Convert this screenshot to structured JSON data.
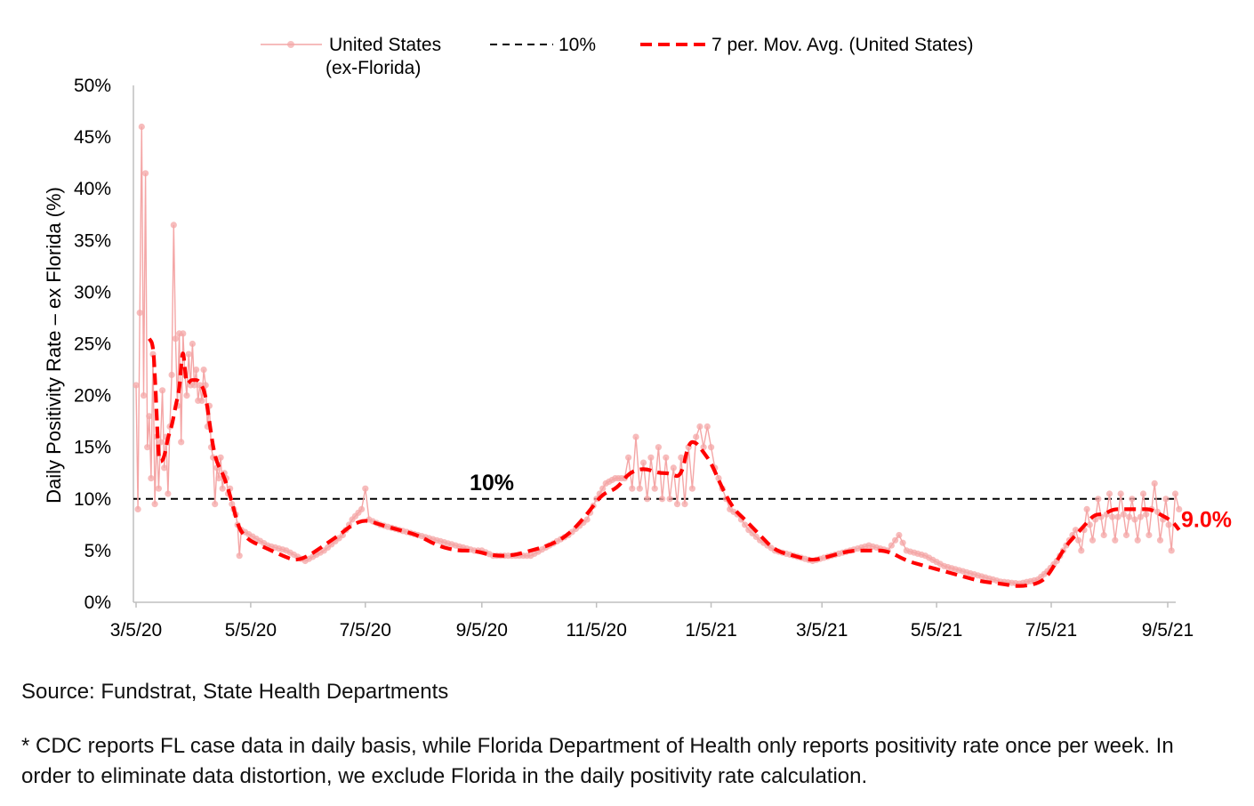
{
  "chart_data": {
    "type": "line",
    "title": "",
    "xlabel": "",
    "ylabel": "Daily Positivity Rate – ex Florida (%)",
    "ylim": [
      0,
      50
    ],
    "x_start_date": "2020-03-05",
    "x_end_date": "2021-09-11",
    "y_ticks": [
      "0%",
      "5%",
      "10%",
      "15%",
      "20%",
      "25%",
      "30%",
      "35%",
      "40%",
      "45%",
      "50%"
    ],
    "x_ticks": [
      {
        "label": "3/5/20",
        "day": 0
      },
      {
        "label": "5/5/20",
        "day": 61
      },
      {
        "label": "7/5/20",
        "day": 122
      },
      {
        "label": "9/5/20",
        "day": 184
      },
      {
        "label": "11/5/20",
        "day": 245
      },
      {
        "label": "1/5/21",
        "day": 306
      },
      {
        "label": "3/5/21",
        "day": 365
      },
      {
        "label": "5/5/21",
        "day": 426
      },
      {
        "label": "7/5/21",
        "day": 487
      },
      {
        "label": "9/5/21",
        "day": 549
      }
    ],
    "legend": [
      {
        "name": "United States",
        "name2": "(ex-Florida)",
        "color": "#f4a6a6",
        "style": "line-marker"
      },
      {
        "name": "10%",
        "color": "#000000",
        "style": "dashed"
      },
      {
        "name": "7 per. Mov. Avg. (United States)",
        "color": "#ff0000",
        "style": "bold-dashed"
      }
    ],
    "reference_line": {
      "value": 10,
      "label": "10%",
      "color": "#000000"
    },
    "end_label": {
      "text": "9.0%",
      "color": "#ff0000"
    },
    "series": [
      {
        "name": "United States (ex-Florida)",
        "color": "#f4a6a6",
        "anchors": [
          [
            0,
            21
          ],
          [
            1,
            9
          ],
          [
            2,
            28
          ],
          [
            3,
            46
          ],
          [
            4,
            20
          ],
          [
            5,
            41.5
          ],
          [
            6,
            15
          ],
          [
            7,
            18
          ],
          [
            8,
            12
          ],
          [
            9,
            24
          ],
          [
            10,
            9.5
          ],
          [
            11,
            16
          ],
          [
            12,
            11
          ],
          [
            13,
            15.5
          ],
          [
            14,
            20.5
          ],
          [
            15,
            13
          ],
          [
            16,
            16
          ],
          [
            17,
            10.5
          ],
          [
            18,
            17
          ],
          [
            19,
            22
          ],
          [
            20,
            36.5
          ],
          [
            21,
            25.5
          ],
          [
            22,
            19
          ],
          [
            23,
            26
          ],
          [
            24,
            15.5
          ],
          [
            25,
            26
          ],
          [
            26,
            22
          ],
          [
            27,
            20
          ],
          [
            28,
            24
          ],
          [
            29,
            21
          ],
          [
            30,
            25
          ],
          [
            31,
            21
          ],
          [
            32,
            22.5
          ],
          [
            33,
            19.5
          ],
          [
            34,
            21
          ],
          [
            35,
            19.5
          ],
          [
            36,
            22.5
          ],
          [
            37,
            21
          ],
          [
            38,
            17
          ],
          [
            39,
            19
          ],
          [
            40,
            15
          ],
          [
            41,
            14
          ],
          [
            42,
            9.5
          ],
          [
            43,
            13
          ],
          [
            44,
            12
          ],
          [
            45,
            14
          ],
          [
            46,
            11
          ],
          [
            47,
            12.5
          ],
          [
            48,
            12
          ],
          [
            49,
            10.5
          ],
          [
            50,
            11
          ],
          [
            51,
            9.5
          ],
          [
            52,
            9
          ],
          [
            53,
            8.5
          ],
          [
            54,
            7.5
          ],
          [
            55,
            4.5
          ],
          [
            56,
            7
          ],
          [
            70,
            5.5
          ],
          [
            80,
            5
          ],
          [
            90,
            4
          ],
          [
            100,
            5
          ],
          [
            110,
            6.5
          ],
          [
            115,
            8
          ],
          [
            120,
            9
          ],
          [
            122,
            11
          ],
          [
            124,
            8
          ],
          [
            130,
            7.5
          ],
          [
            140,
            7
          ],
          [
            150,
            6.5
          ],
          [
            160,
            6
          ],
          [
            170,
            5.5
          ],
          [
            180,
            5
          ],
          [
            184,
            5
          ],
          [
            190,
            4.5
          ],
          [
            200,
            4.5
          ],
          [
            210,
            4.5
          ],
          [
            220,
            5.5
          ],
          [
            230,
            6.5
          ],
          [
            240,
            8
          ],
          [
            245,
            10
          ],
          [
            250,
            11.5
          ],
          [
            255,
            12
          ],
          [
            260,
            12
          ],
          [
            262,
            14
          ],
          [
            264,
            11
          ],
          [
            266,
            16
          ],
          [
            268,
            11
          ],
          [
            270,
            13.5
          ],
          [
            272,
            10
          ],
          [
            274,
            14
          ],
          [
            276,
            11
          ],
          [
            278,
            15
          ],
          [
            280,
            10
          ],
          [
            282,
            14
          ],
          [
            284,
            10
          ],
          [
            286,
            13
          ],
          [
            288,
            9.5
          ],
          [
            290,
            14
          ],
          [
            292,
            9.5
          ],
          [
            294,
            15
          ],
          [
            296,
            11
          ],
          [
            298,
            16
          ],
          [
            300,
            17
          ],
          [
            302,
            15
          ],
          [
            304,
            17
          ],
          [
            306,
            15
          ],
          [
            308,
            13
          ],
          [
            310,
            12
          ],
          [
            312,
            11
          ],
          [
            314,
            10
          ],
          [
            316,
            9
          ],
          [
            320,
            8.5
          ],
          [
            326,
            7
          ],
          [
            332,
            6
          ],
          [
            340,
            5
          ],
          [
            350,
            4.5
          ],
          [
            360,
            4
          ],
          [
            370,
            4.5
          ],
          [
            380,
            5
          ],
          [
            390,
            5.5
          ],
          [
            400,
            5
          ],
          [
            406,
            6.5
          ],
          [
            410,
            5
          ],
          [
            420,
            4.5
          ],
          [
            430,
            3.5
          ],
          [
            440,
            3
          ],
          [
            450,
            2.5
          ],
          [
            460,
            2
          ],
          [
            470,
            1.8
          ],
          [
            480,
            2.2
          ],
          [
            485,
            3
          ],
          [
            490,
            4
          ],
          [
            495,
            5.5
          ],
          [
            500,
            7
          ],
          [
            503,
            5
          ],
          [
            506,
            9
          ],
          [
            509,
            6
          ],
          [
            512,
            10
          ],
          [
            515,
            6.5
          ],
          [
            518,
            10.5
          ],
          [
            521,
            6
          ],
          [
            524,
            10.5
          ],
          [
            527,
            6.5
          ],
          [
            530,
            10
          ],
          [
            533,
            6
          ],
          [
            536,
            10.5
          ],
          [
            539,
            6.5
          ],
          [
            542,
            11.5
          ],
          [
            545,
            6
          ],
          [
            548,
            10
          ],
          [
            551,
            5
          ],
          [
            553,
            10.5
          ],
          [
            555,
            9
          ]
        ]
      },
      {
        "name": "7 per. Mov. Avg. (United States)",
        "color": "#ff0000",
        "anchors": [
          [
            7,
            25.5
          ],
          [
            9,
            25
          ],
          [
            10,
            22
          ],
          [
            11,
            18
          ],
          [
            12,
            14
          ],
          [
            13,
            13.5
          ],
          [
            15,
            14
          ],
          [
            17,
            16
          ],
          [
            19,
            17
          ],
          [
            21,
            19
          ],
          [
            23,
            20.5
          ],
          [
            24,
            23
          ],
          [
            25,
            24.5
          ],
          [
            26,
            22.5
          ],
          [
            27,
            21
          ],
          [
            29,
            21.5
          ],
          [
            31,
            21.5
          ],
          [
            33,
            21.5
          ],
          [
            35,
            21
          ],
          [
            37,
            20
          ],
          [
            39,
            17.5
          ],
          [
            41,
            15
          ],
          [
            43,
            13.5
          ],
          [
            46,
            12.5
          ],
          [
            49,
            11
          ],
          [
            52,
            9
          ],
          [
            55,
            7
          ],
          [
            60,
            6
          ],
          [
            66,
            5.5
          ],
          [
            72,
            5
          ],
          [
            78,
            4.5
          ],
          [
            85,
            4
          ],
          [
            92,
            4.5
          ],
          [
            100,
            5.5
          ],
          [
            108,
            6.5
          ],
          [
            115,
            7.5
          ],
          [
            122,
            8
          ],
          [
            130,
            7.5
          ],
          [
            140,
            7
          ],
          [
            150,
            6.5
          ],
          [
            160,
            5.5
          ],
          [
            170,
            5
          ],
          [
            180,
            5
          ],
          [
            190,
            4.5
          ],
          [
            200,
            4.5
          ],
          [
            210,
            5
          ],
          [
            220,
            5.5
          ],
          [
            230,
            6.5
          ],
          [
            240,
            8.5
          ],
          [
            248,
            10.5
          ],
          [
            256,
            11
          ],
          [
            262,
            12.5
          ],
          [
            270,
            13
          ],
          [
            278,
            12.5
          ],
          [
            284,
            12.5
          ],
          [
            290,
            12
          ],
          [
            294,
            15.5
          ],
          [
            298,
            15.5
          ],
          [
            302,
            14.5
          ],
          [
            306,
            13.5
          ],
          [
            312,
            11
          ],
          [
            318,
            9
          ],
          [
            324,
            8
          ],
          [
            332,
            6.5
          ],
          [
            340,
            5
          ],
          [
            350,
            4.5
          ],
          [
            360,
            4
          ],
          [
            370,
            4.5
          ],
          [
            380,
            5
          ],
          [
            390,
            5
          ],
          [
            400,
            5
          ],
          [
            410,
            4
          ],
          [
            420,
            3.5
          ],
          [
            430,
            3
          ],
          [
            440,
            2.5
          ],
          [
            450,
            2
          ],
          [
            460,
            1.8
          ],
          [
            470,
            1.5
          ],
          [
            480,
            1.8
          ],
          [
            485,
            2.5
          ],
          [
            490,
            4
          ],
          [
            495,
            5.5
          ],
          [
            500,
            6.5
          ],
          [
            505,
            7.5
          ],
          [
            510,
            8.5
          ],
          [
            515,
            8.5
          ],
          [
            520,
            9
          ],
          [
            525,
            9
          ],
          [
            530,
            9
          ],
          [
            535,
            9
          ],
          [
            540,
            9
          ],
          [
            545,
            8.5
          ],
          [
            550,
            8
          ],
          [
            553,
            7.5
          ],
          [
            555,
            7
          ]
        ]
      }
    ]
  },
  "footer": {
    "source": "Source: Fundstrat, State Health Departments",
    "note": "* CDC reports FL case data in daily basis,  while Florida Department of Health only reports positivity rate once per week. In order to eliminate data distortion, we exclude Florida in the daily positivity rate calculation."
  }
}
